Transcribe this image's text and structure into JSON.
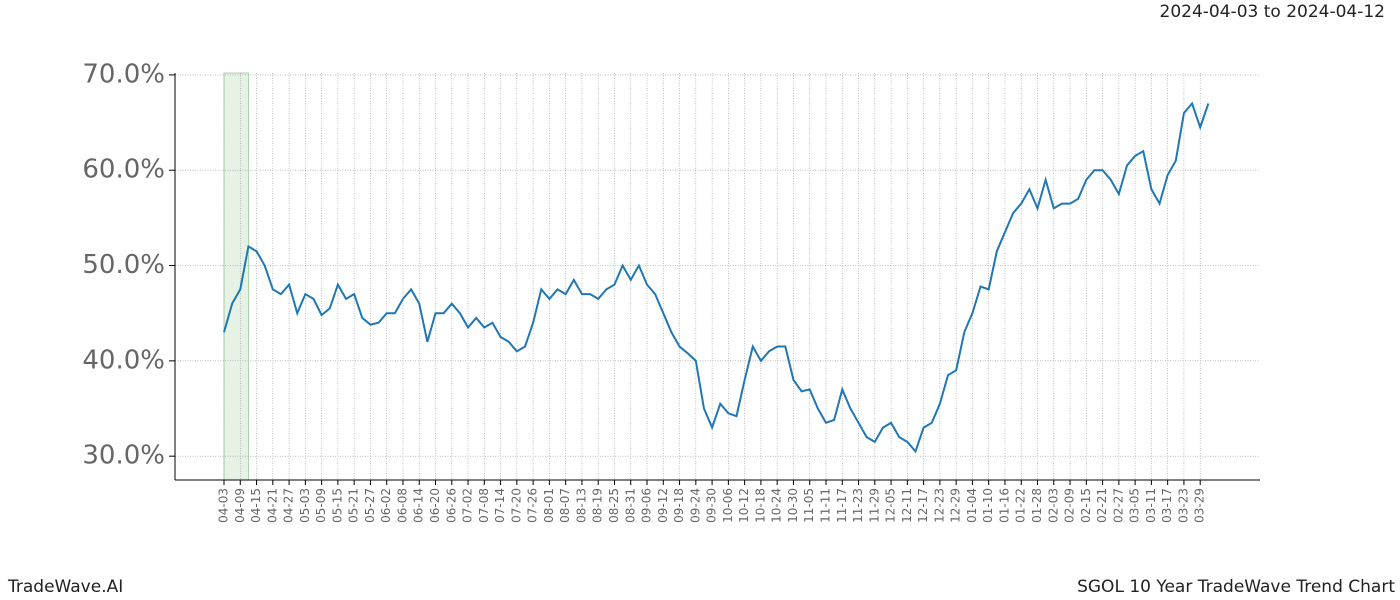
{
  "chart_data": {
    "type": "line",
    "subtitle": "2024-04-03 to 2024-04-12",
    "footer_left": "TradeWave.AI",
    "footer_right": "SGOL 10 Year TradeWave Trend Chart",
    "categories": [
      "04-03",
      null,
      "04-09",
      null,
      "04-15",
      null,
      "04-21",
      null,
      "04-27",
      null,
      "05-03",
      null,
      "05-09",
      null,
      "05-15",
      null,
      "05-21",
      null,
      "05-27",
      null,
      "06-02",
      null,
      "06-08",
      null,
      "06-14",
      null,
      "06-20",
      null,
      "06-26",
      null,
      "07-02",
      null,
      "07-08",
      null,
      "07-14",
      null,
      "07-20",
      null,
      "07-26",
      null,
      "08-01",
      null,
      "08-07",
      null,
      "08-13",
      null,
      "08-19",
      null,
      "08-25",
      null,
      "08-31",
      null,
      "09-06",
      null,
      "09-12",
      null,
      "09-18",
      null,
      "09-24",
      null,
      "09-30",
      null,
      "10-06",
      null,
      "10-12",
      null,
      "10-18",
      null,
      "10-24",
      null,
      "10-30",
      null,
      "11-05",
      null,
      "11-11",
      null,
      "11-17",
      null,
      "11-23",
      null,
      "11-29",
      null,
      "12-05",
      null,
      "12-11",
      null,
      "12-17",
      null,
      "12-23",
      null,
      "12-29",
      null,
      "01-04",
      null,
      "01-10",
      null,
      "01-16",
      null,
      "01-22",
      null,
      "01-28",
      null,
      "02-03",
      null,
      "02-09",
      null,
      "02-15",
      null,
      "02-21",
      null,
      "02-27",
      null,
      "03-05",
      null,
      "03-11",
      null,
      "03-17",
      null,
      "03-23",
      null,
      "03-29",
      null
    ],
    "series": [
      {
        "color": "#1f77b4",
        "values": [
          43,
          46,
          47.5,
          52,
          51.5,
          50,
          47.5,
          47,
          48,
          45,
          47,
          46.5,
          44.8,
          45.5,
          48,
          46.5,
          47,
          44.5,
          43.8,
          44,
          45,
          45,
          46.5,
          47.5,
          46,
          42,
          45,
          45,
          46,
          45,
          43.5,
          44.5,
          43.5,
          44,
          42.5,
          42,
          41,
          41.5,
          44,
          47.5,
          46.5,
          47.5,
          47,
          48.5,
          47,
          47,
          46.5,
          47.5,
          48,
          50,
          48.5,
          50,
          48,
          47,
          45,
          43,
          41.5,
          40.8,
          40,
          35,
          33,
          35.5,
          34.5,
          34.2,
          38,
          41.5,
          40,
          41,
          41.5,
          41.5,
          38,
          36.8,
          37,
          35,
          33.5,
          33.8,
          37,
          35,
          33.5,
          32,
          31.5,
          33,
          33.5,
          32,
          31.5,
          30.5,
          33,
          33.5,
          35.5,
          38.5,
          39,
          43,
          45,
          47.8,
          47.5,
          51.5,
          53.5,
          55.5,
          56.5,
          58,
          56,
          59,
          56,
          56.5,
          56.5,
          57,
          59,
          60,
          60,
          59,
          57.5,
          60.5,
          61.5,
          62,
          58,
          56.5,
          59.5,
          61,
          66,
          67,
          64.5,
          67
        ]
      }
    ],
    "shade": {
      "from": 0,
      "to": 3,
      "color": "#e6f2e6"
    },
    "ylim": [
      27.5,
      70.2
    ],
    "yticks": [
      {
        "value": 30,
        "label": "30.0%"
      },
      {
        "value": 40,
        "label": "40.0%"
      },
      {
        "value": 50,
        "label": "50.0%"
      },
      {
        "value": 60,
        "label": "60.0%"
      },
      {
        "value": 70,
        "label": "70.0%"
      }
    ],
    "grid": true
  }
}
